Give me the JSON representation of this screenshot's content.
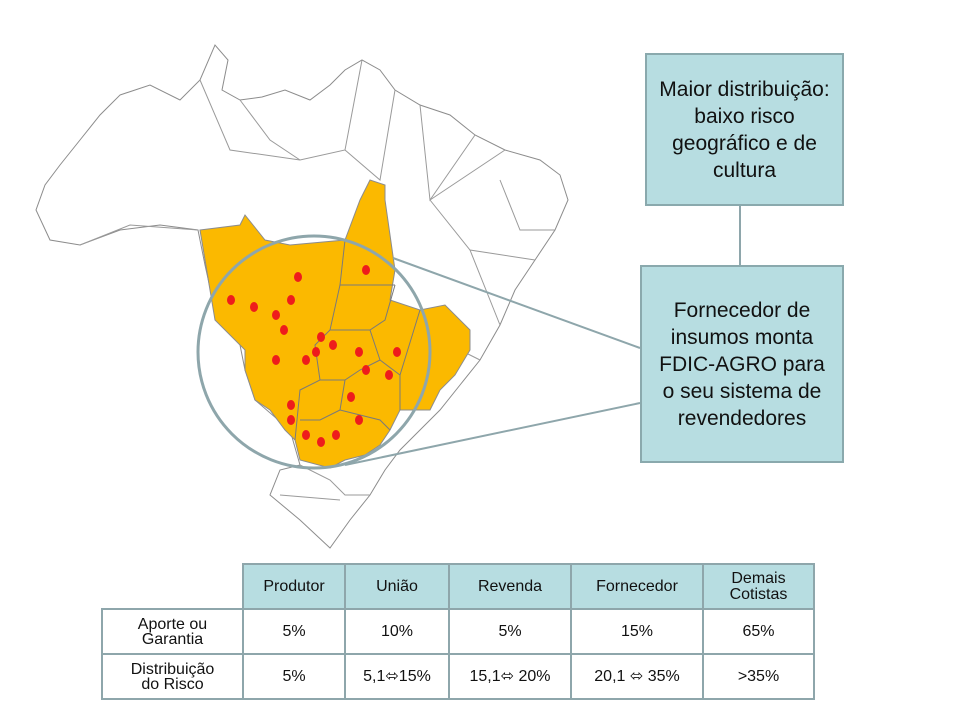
{
  "callouts": {
    "top": "Maior distribuição: baixo risco geográfico e de cultura",
    "middle": "Fornecedor de insumos monta FDIC-AGRO para o seu sistema de revendedores"
  },
  "colors": {
    "highlight_region": "#fbb900",
    "dots": "#ee1c1c",
    "callout_fill": "#b7dde1",
    "border": "#8ea6ab"
  },
  "table": {
    "columns": [
      "Produtor",
      "União",
      "Revenda",
      "Fornecedor",
      "Demais Cotistas"
    ],
    "rows": [
      {
        "label": "Aporte ou Garantia",
        "values": [
          "5%",
          "10%",
          "5%",
          "15%",
          "65%"
        ]
      },
      {
        "label": "Distribuição do Risco",
        "values": [
          "5%",
          "5,1⬄15%",
          "15,1⬄ 20%",
          "20,1 ⬄ 35%",
          ">35%"
        ]
      }
    ]
  }
}
